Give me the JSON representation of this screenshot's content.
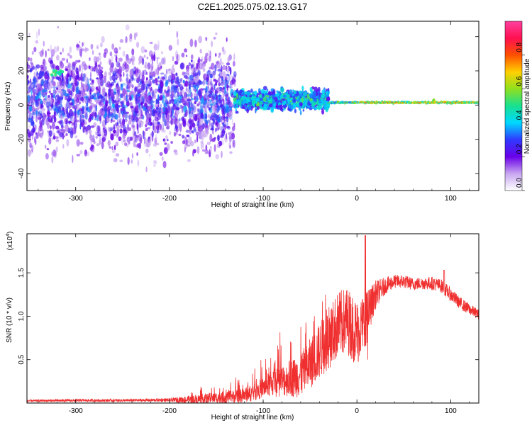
{
  "title": "C2E1.2025.075.02.13.G17",
  "chart_data": [
    {
      "type": "heatmap",
      "xlabel": "Height of straight line (km)",
      "ylabel": "Frequency (Hz)",
      "xlim": [
        -352,
        130
      ],
      "ylim": [
        -50,
        49
      ],
      "x_ticks": [
        -300,
        -200,
        -100,
        0,
        100
      ],
      "x_tick_labels": [
        "-300",
        "-200",
        "-100",
        "0",
        "100"
      ],
      "y_ticks": [
        -40,
        -20,
        0,
        20,
        40
      ],
      "y_tick_labels": [
        "-40",
        "-20",
        "0",
        "20",
        "40"
      ],
      "colorbar": {
        "label": "Normalized spectral amplitude",
        "range": [
          0,
          1
        ],
        "ticks": [
          0,
          0.2,
          0.4,
          0.6,
          0.8
        ],
        "tick_labels": [
          "0.0",
          "0.2",
          "0.4",
          "0.6",
          "0.8"
        ],
        "colors": [
          "#ffffff",
          "#c8a6f0",
          "#6a00e8",
          "#2f39ff",
          "#00d8ff",
          "#18e090",
          "#8fe020",
          "#ffd000",
          "#ff5000",
          "#ff1050",
          "#ff40a0"
        ]
      },
      "regions": [
        {
          "x_range": [
            -352,
            -130
          ],
          "freq_center": 3,
          "freq_spread": 40,
          "amplitude": "0.1-0.3"
        },
        {
          "x_range": [
            -130,
            -30
          ],
          "freq_center": 3,
          "freq_spread": 8,
          "amplitude": "0.2-0.5"
        },
        {
          "x_range": [
            -30,
            130
          ],
          "freq_center": 1.5,
          "freq_spread": 2,
          "amplitude": "0.4-0.8"
        }
      ],
      "grid": false
    },
    {
      "type": "line",
      "xlabel": "Height of straight line (km)",
      "ylabel": "SNR (10 * v/v)",
      "y_scale_label": "(x10",
      "y_scale_exponent": "4",
      "xlim": [
        -352,
        130
      ],
      "ylim": [
        0,
        19500
      ],
      "x_ticks": [
        -300,
        -200,
        -100,
        0,
        100
      ],
      "x_tick_labels": [
        "-300",
        "-200",
        "-100",
        "0",
        "100"
      ],
      "y_ticks": [
        5000,
        10000,
        15000
      ],
      "y_tick_labels": [
        "0.5",
        "1.0",
        "1.5"
      ],
      "series": [
        {
          "color": "#f03030",
          "x": [
            -352,
            -300,
            -250,
            -200,
            -175,
            -150,
            -125,
            -110,
            -100,
            -90,
            -75,
            -60,
            -50,
            -40,
            -30,
            -20,
            -10,
            0,
            10,
            20,
            30,
            40,
            50,
            60,
            70,
            80,
            90,
            100,
            110,
            120,
            130
          ],
          "y": [
            250,
            300,
            300,
            350,
            400,
            600,
            800,
            1200,
            1800,
            2300,
            2700,
            3200,
            4500,
            6000,
            7500,
            9000,
            9500,
            8000,
            10000,
            12500,
            13500,
            14000,
            14000,
            13700,
            13800,
            13800,
            13500,
            12500,
            11500,
            10800,
            10200
          ],
          "noise_amplitude": [
            200,
            250,
            250,
            300,
            800,
            1000,
            1200,
            1500,
            1800,
            2500,
            3000,
            4000,
            4500,
            5000,
            5500,
            6000,
            6000,
            6000,
            4500,
            2500,
            1500,
            1200,
            1200,
            1100,
            1100,
            1200,
            1200,
            1200,
            1100,
            1000,
            900
          ]
        }
      ],
      "grid": false
    }
  ]
}
